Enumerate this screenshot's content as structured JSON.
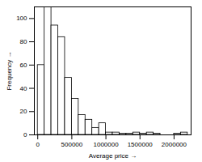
{
  "chart_data": {
    "type": "histogram",
    "x_label": "Average price",
    "y_label": "Frequency",
    "bins": [
      0,
      100000,
      200000,
      300000,
      400000,
      500000,
      600000,
      700000,
      800000,
      900000,
      1000000,
      1100000,
      1200000,
      1300000,
      1400000,
      1500000,
      1600000,
      1700000,
      1800000,
      1900000,
      2000000,
      2100000,
      2200000
    ],
    "counts": [
      60,
      110,
      94,
      84,
      49,
      31,
      17,
      13,
      6,
      10,
      2,
      2,
      1,
      1,
      2,
      1,
      2,
      1,
      0,
      0,
      1,
      2
    ],
    "color": "#ffffff",
    "xlim": [
      -50000,
      2250000
    ],
    "ylim": [
      0,
      110
    ],
    "xticks": [
      0,
      500000,
      1000000,
      1500000,
      2000000
    ],
    "yticks": [
      0,
      20,
      40,
      60,
      80,
      100
    ]
  }
}
